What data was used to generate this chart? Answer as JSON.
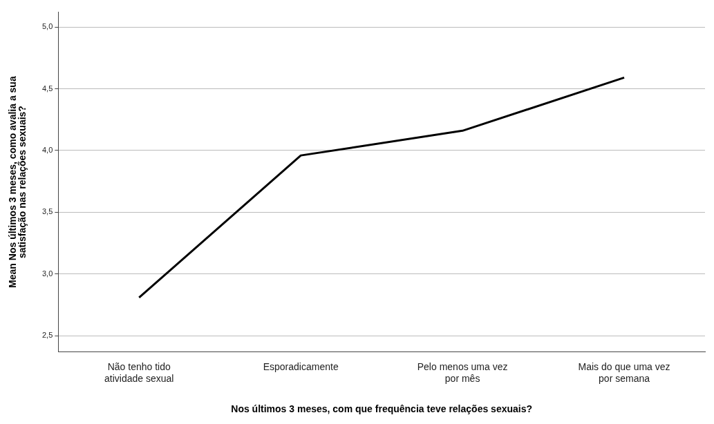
{
  "chart_data": {
    "type": "line",
    "categories": [
      "Não tenho tido atividade sexual",
      "Esporadicamente",
      "Pelo menos uma vez por mês",
      "Mais do que uma vez por semana"
    ],
    "series": [
      {
        "color": "#000000",
        "values": [
          2.81,
          3.96,
          4.16,
          4.59
        ]
      }
    ],
    "xlabel": "Nos últimos 3 meses, com que frequência teve relações sexuais?",
    "ylabel": "Mean Nos últimos 3 meses, como avalia a sua satisfação nas relações sexuais?",
    "ylim": [
      2.37,
      5.12
    ],
    "yticks": [
      {
        "value": 2.5,
        "label": "2,5"
      },
      {
        "value": 3,
        "label": "3,0"
      },
      {
        "value": 3.5,
        "label": "3,5"
      },
      {
        "value": 4,
        "label": "4,0"
      },
      {
        "value": 4.5,
        "label": "4,5"
      },
      {
        "value": 5,
        "label": "5,0"
      }
    ],
    "grid": "y",
    "legend": false,
    "marker": "none",
    "line_style": "solid"
  }
}
